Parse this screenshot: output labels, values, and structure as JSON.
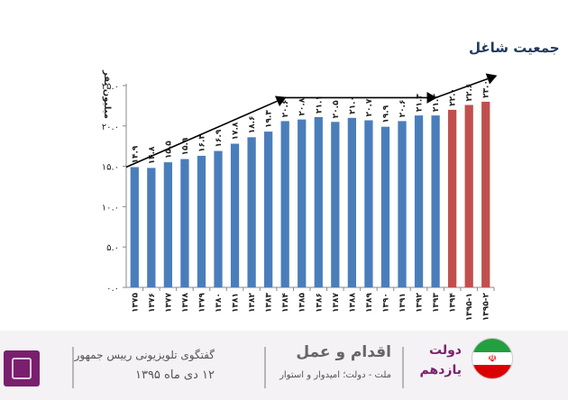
{
  "chart_data": {
    "type": "bar",
    "title": "جمعیت شاغل",
    "ylabel": "میلیون نفر",
    "xlabel": "",
    "ylim": [
      0,
      25
    ],
    "yticks": [
      "۰.۰",
      "۵.۰",
      "۱۰.۰",
      "۱۵.۰",
      "۲۰.۰",
      "۲۵.۰"
    ],
    "categories": [
      "۱۳۷۵",
      "۱۳۷۶",
      "۱۳۷۷",
      "۱۳۷۸",
      "۱۳۷۹",
      "۱۳۸۰",
      "۱۳۸۱",
      "۱۳۸۲",
      "۱۳۸۳",
      "۱۳۸۴",
      "۱۳۸۵",
      "۱۳۸۶",
      "۱۳۸۷",
      "۱۳۸۸",
      "۱۳۸۹",
      "۱۳۹۰",
      "۱۳۹۱",
      "۱۳۹۲",
      "۱۳۹۳",
      "۱۳۹۴",
      "۱۳۹۵-۱",
      "۱۳۹۵-۲"
    ],
    "values": [
      14.9,
      14.8,
      15.5,
      15.9,
      16.3,
      16.9,
      17.8,
      18.6,
      19.3,
      20.6,
      20.8,
      21.1,
      20.5,
      21.0,
      20.7,
      19.9,
      20.6,
      21.3,
      21.3,
      22.0,
      22.6,
      23.0
    ],
    "value_labels": [
      "۱۴.۹",
      "۱۴.۸",
      "۱۵.۵",
      "۱۵.۹",
      "۱۶.۳",
      "۱۶.۹",
      "۱۷.۸",
      "۱۸.۶",
      "۱۹.۳",
      "۲۰.۶",
      "۲۰.۸",
      "۲۱.۱",
      "۲۰.۵",
      "۲۱.۰",
      "۲۰.۷",
      "۱۹.۹",
      "۲۰.۶",
      "۲۱.۳",
      "۲۱.۳",
      "۲۲.۰",
      "۲۲.۶",
      "۲۳.۰"
    ],
    "bar_colors": [
      "#4a7ebb",
      "#4a7ebb",
      "#4a7ebb",
      "#4a7ebb",
      "#4a7ebb",
      "#4a7ebb",
      "#4a7ebb",
      "#4a7ebb",
      "#4a7ebb",
      "#4a7ebb",
      "#4a7ebb",
      "#4a7ebb",
      "#4a7ebb",
      "#4a7ebb",
      "#4a7ebb",
      "#4a7ebb",
      "#4a7ebb",
      "#4a7ebb",
      "#4a7ebb",
      "#c0504d",
      "#c0504d",
      "#c0504d"
    ],
    "trend_arrows": [
      {
        "from_category": "۱۳۷۵",
        "from_value": 14.9,
        "to_category": "۱۳۸۴",
        "to_value": 23.5
      },
      {
        "from_category": "۱۳۸۴",
        "from_value": 23.5,
        "to_category": "۱۳۹۳",
        "to_value": 23.5
      },
      {
        "from_category": "۱۳۹۳",
        "from_value": 23.5,
        "to_category": "۱۳۹۵-۲",
        "to_value": 26.2
      }
    ],
    "grid": false,
    "colors": {
      "blue": "#4a7ebb",
      "red": "#c0504d",
      "title": "#1f3864"
    }
  },
  "footer": {
    "program_title": "گفتگوی تلویزیونی رییس جمهور",
    "program_date": "۱۲ دی ماه ۱۳۹۵",
    "slogan_title": "اقدام و عمل",
    "slogan_sub": "ملت - دولت؛ امیدوار و استوار",
    "gov_line1": "دولت",
    "gov_line2": "یازدهم",
    "emblem_icon": "iran-flag-icon",
    "logo_icon": "presidency-logo-icon"
  }
}
